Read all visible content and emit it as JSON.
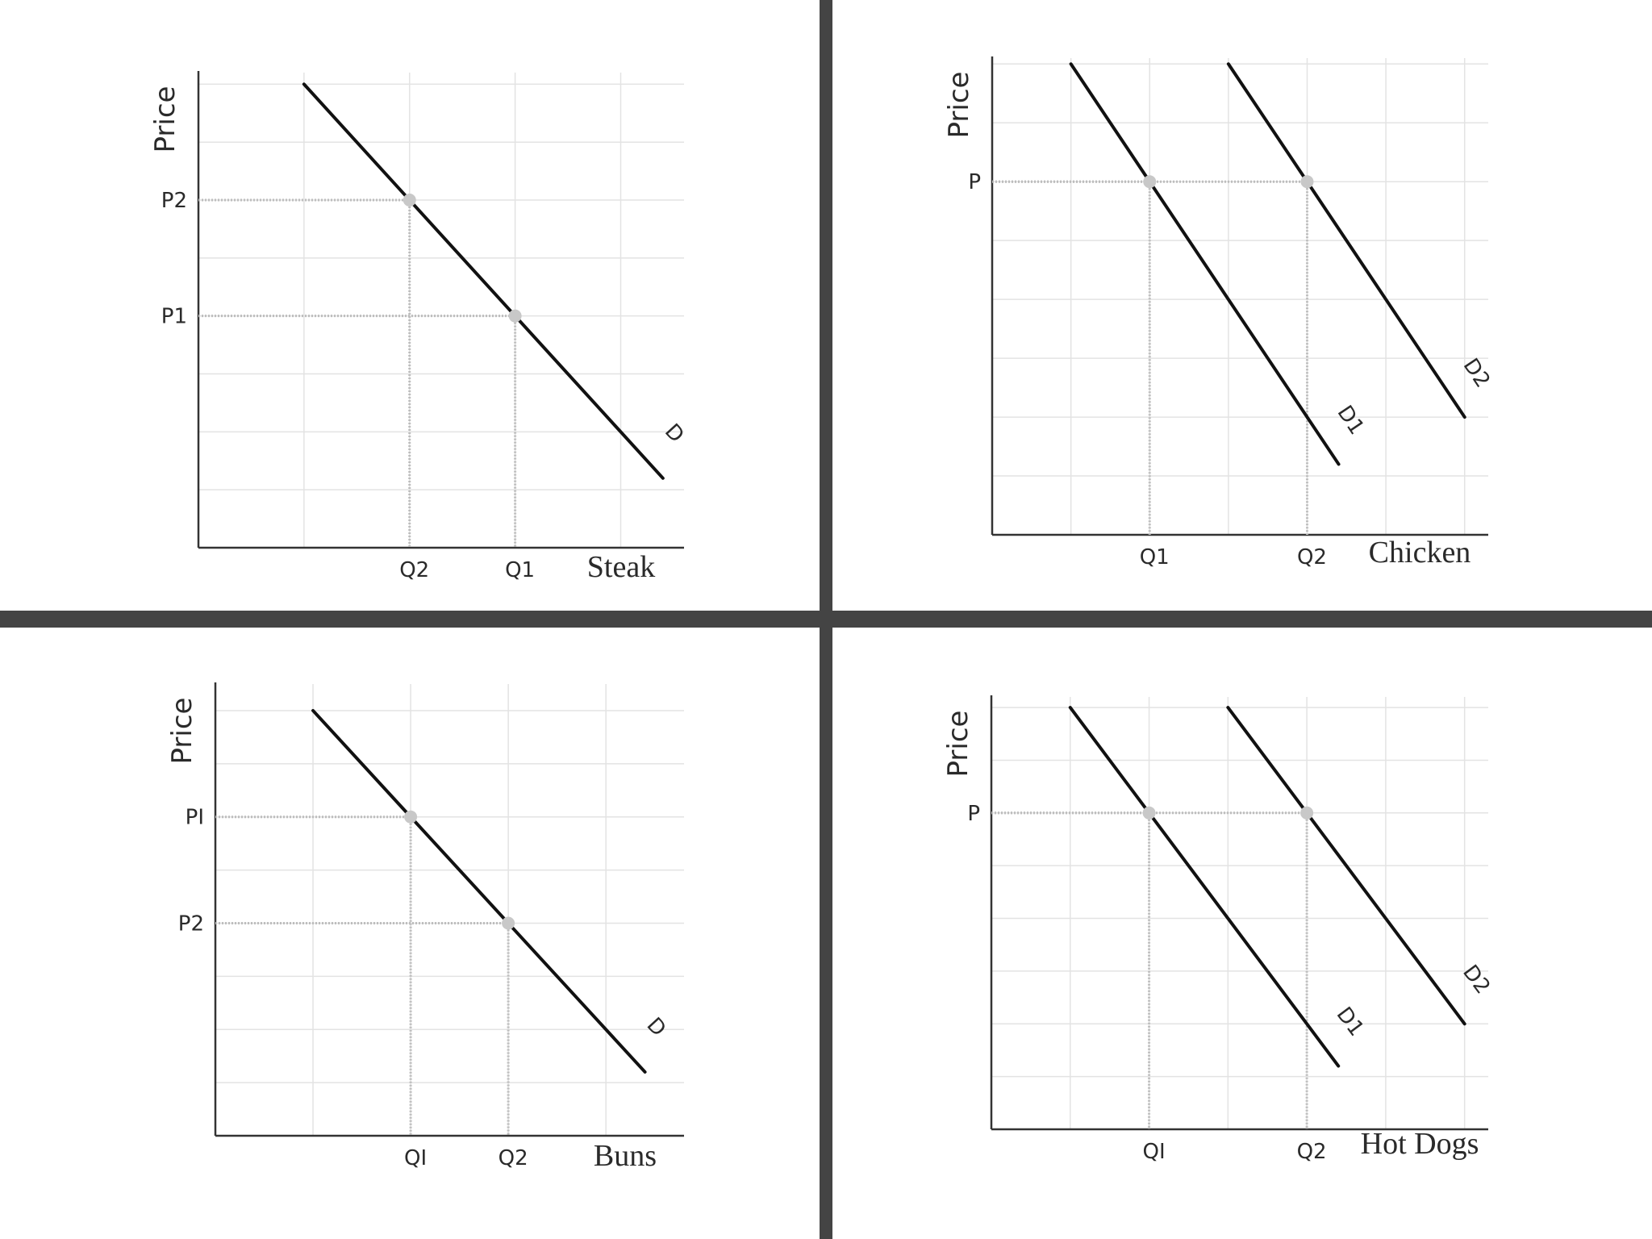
{
  "colors": {
    "divider": "#444444",
    "curve": "#111111",
    "grid": "#e3e3e3",
    "guide": "#bdbdbd",
    "point": "#c8c8c8"
  },
  "chart_data": [
    {
      "type": "line",
      "ylabel": "Price",
      "xlabel": "Steak",
      "xlim": [
        0,
        4.6
      ],
      "ylim": [
        0,
        8.2
      ],
      "grid": true,
      "series": [
        {
          "name": "D",
          "points": [
            [
              1,
              8
            ],
            [
              4.4,
              1.2
            ]
          ]
        }
      ],
      "points": [
        {
          "x": 2,
          "y": 6,
          "xlabel": "Q2",
          "ylabel": "P2"
        },
        {
          "x": 3,
          "y": 4,
          "xlabel": "Q1",
          "ylabel": "P1"
        }
      ]
    },
    {
      "type": "line",
      "ylabel": "Price",
      "xlabel": "Chicken",
      "xlim": [
        0,
        6.3
      ],
      "ylim": [
        0,
        8.1
      ],
      "grid": true,
      "series": [
        {
          "name": "D1",
          "points": [
            [
              1,
              8
            ],
            [
              4.4,
              1.2
            ]
          ]
        },
        {
          "name": "D2",
          "points": [
            [
              3,
              8
            ],
            [
              6,
              2
            ]
          ]
        }
      ],
      "points": [
        {
          "x": 2,
          "y": 6,
          "xlabel": "Q1",
          "ylabel": "P"
        },
        {
          "x": 4,
          "y": 6,
          "xlabel": "Q2",
          "ylabel": ""
        }
      ]
    },
    {
      "type": "line",
      "ylabel": "Price",
      "xlabel": "Buns",
      "xlim": [
        0,
        4.8
      ],
      "ylim": [
        0,
        8.5
      ],
      "grid": true,
      "series": [
        {
          "name": "D",
          "points": [
            [
              1,
              8
            ],
            [
              4.4,
              1.2
            ]
          ]
        }
      ],
      "points": [
        {
          "x": 2,
          "y": 6,
          "xlabel": "QI",
          "ylabel": "PI"
        },
        {
          "x": 3,
          "y": 4,
          "xlabel": "Q2",
          "ylabel": "P2"
        }
      ]
    },
    {
      "type": "line",
      "ylabel": "Price",
      "xlabel": "Hot Dogs",
      "xlim": [
        0,
        6.3
      ],
      "ylim": [
        0,
        8.2
      ],
      "grid": true,
      "series": [
        {
          "name": "D1",
          "points": [
            [
              1,
              8
            ],
            [
              4.4,
              1.2
            ]
          ]
        },
        {
          "name": "D2",
          "points": [
            [
              3,
              8
            ],
            [
              6,
              2
            ]
          ]
        }
      ],
      "points": [
        {
          "x": 2,
          "y": 6,
          "xlabel": "QI",
          "ylabel": "P"
        },
        {
          "x": 4,
          "y": 6,
          "xlabel": "Q2",
          "ylabel": ""
        }
      ]
    }
  ]
}
